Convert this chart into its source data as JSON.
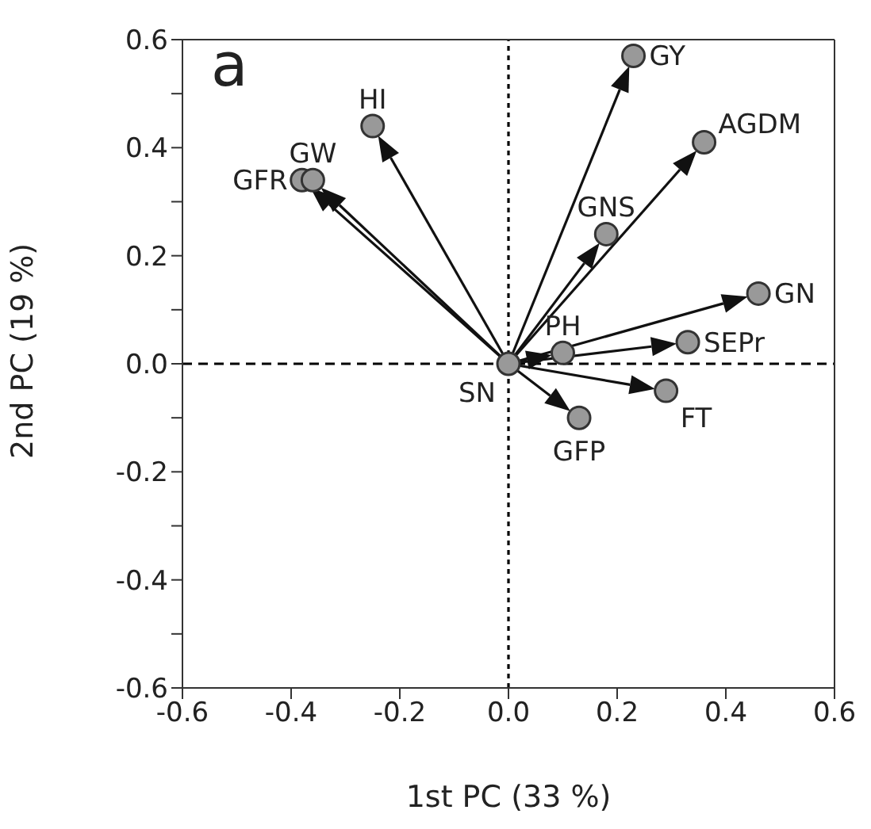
{
  "chart_data": {
    "type": "scatter",
    "xlabel": "1st PC (33 %)",
    "ylabel": "2nd PC (19 %)",
    "annotations": [
      "a"
    ],
    "x": [
      -0.38,
      -0.36,
      -0.25,
      0.23,
      0.36,
      0.18,
      0.46,
      0.33,
      0.1,
      0,
      0.29,
      0.13
    ],
    "series": [
      {
        "color": "#999999",
        "values": [
          0.34,
          0.34,
          0.44,
          0.57,
          0.41,
          0.24,
          0.13,
          0.04,
          0.02,
          0,
          -0.05,
          -0.1
        ]
      }
    ],
    "value_labels": [
      "GFR",
      "GW",
      "HI",
      "GY",
      "AGDM",
      "GNS",
      "GN",
      "SEPr",
      "PH",
      "SN",
      "FT",
      "GFP"
    ],
    "xlim": [
      -0.6,
      0.6
    ],
    "ylim": [
      -0.6,
      0.6
    ],
    "xticks": [
      -0.6,
      -0.4,
      -0.2,
      {
        "value": 0,
        "label": "0.0"
      },
      0.2,
      0.4,
      0.6
    ],
    "yticks": [
      -0.6,
      {
        "value": -0.5,
        "label": null
      },
      -0.4,
      {
        "value": -0.3,
        "label": null
      },
      -0.2,
      {
        "value": -0.1,
        "label": null
      },
      {
        "value": 0,
        "label": "0.0"
      },
      {
        "value": 0.1,
        "label": null
      },
      0.2,
      {
        "value": 0.3,
        "label": null
      },
      0.4,
      {
        "value": 0.5,
        "label": null
      },
      0.6
    ],
    "ref_lines": [
      {
        "axis": "x",
        "value": 0,
        "color": "#000000",
        "line_style": "dotted"
      },
      {
        "axis": "y",
        "value": 0,
        "color": "#000000",
        "line_style": "dashed"
      }
    ],
    "marker": "circle"
  }
}
